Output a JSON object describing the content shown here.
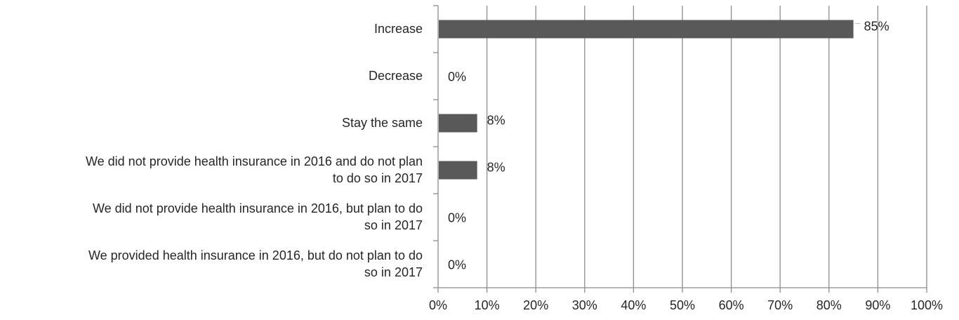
{
  "chart_data": {
    "type": "bar",
    "orientation": "horizontal",
    "categories": [
      "Increase",
      "Decrease",
      "Stay the same",
      "We did not provide health insurance in 2016 and do not plan to do so in 2017",
      "We did not provide health insurance in 2016, but plan to do so in 2017",
      "We provided health insurance in 2016, but do not plan to do so in 2017"
    ],
    "category_lines": [
      [
        "Increase"
      ],
      [
        "Decrease"
      ],
      [
        "Stay the same"
      ],
      [
        "We did not provide health insurance in 2016 and do not plan",
        "to do so in 2017"
      ],
      [
        "We did not provide health insurance in 2016, but plan to do",
        "so in 2017"
      ],
      [
        "We provided health insurance in 2016, but do not plan to do",
        "so in 2017"
      ]
    ],
    "values": [
      85,
      0,
      8,
      8,
      0,
      0
    ],
    "data_labels": [
      "85%",
      "0%",
      "8%",
      "8%",
      "0%",
      "0%"
    ],
    "xlim": [
      0,
      100
    ],
    "x_ticks": [
      0,
      10,
      20,
      30,
      40,
      50,
      60,
      70,
      80,
      90,
      100
    ],
    "x_tick_labels": [
      "0%",
      "10%",
      "20%",
      "30%",
      "40%",
      "50%",
      "60%",
      "70%",
      "80%",
      "90%",
      "100%"
    ],
    "grid": true,
    "legend": "none",
    "bar_color": "#595959",
    "grid_color": "#8c8c8c",
    "title": "",
    "xlabel": "",
    "ylabel": ""
  }
}
